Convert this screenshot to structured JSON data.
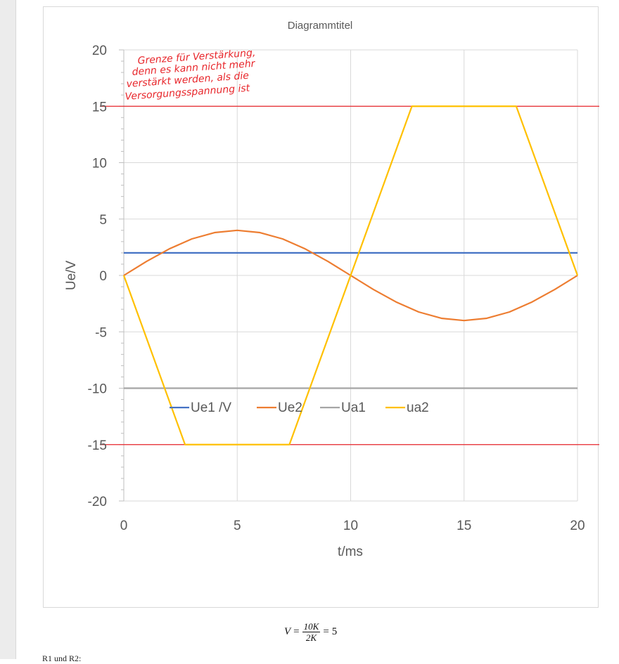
{
  "chart_data": {
    "type": "line",
    "title": "Diagrammtitel",
    "xlabel": "t/ms",
    "ylabel": "Ue/V",
    "xlim": [
      0,
      20
    ],
    "ylim": [
      -20,
      20
    ],
    "x_ticks": [
      0,
      5,
      10,
      15,
      20
    ],
    "y_ticks": [
      20,
      15,
      10,
      5,
      0,
      -5,
      -10,
      -15,
      -20
    ],
    "grid": true,
    "legend_position": "bottom-left-inside",
    "series": [
      {
        "name": "Ue1 /V",
        "color": "#4472C4",
        "points": [
          [
            0,
            2
          ],
          [
            20,
            2
          ]
        ]
      },
      {
        "name": "Ue2",
        "color": "#ED7D31",
        "points": [
          [
            0,
            0
          ],
          [
            1,
            1.24
          ],
          [
            2,
            2.35
          ],
          [
            3,
            3.24
          ],
          [
            4,
            3.8
          ],
          [
            5,
            4
          ],
          [
            6,
            3.8
          ],
          [
            7,
            3.24
          ],
          [
            8,
            2.35
          ],
          [
            9,
            1.24
          ],
          [
            10,
            0
          ],
          [
            11,
            -1.24
          ],
          [
            12,
            -2.35
          ],
          [
            13,
            -3.24
          ],
          [
            14,
            -3.8
          ],
          [
            15,
            -4
          ],
          [
            16,
            -3.8
          ],
          [
            17,
            -3.24
          ],
          [
            18,
            -2.35
          ],
          [
            19,
            -1.24
          ],
          [
            20,
            0
          ]
        ]
      },
      {
        "name": "Ua1",
        "color": "#A5A5A5",
        "points": [
          [
            0,
            -10
          ],
          [
            20,
            -10
          ]
        ]
      },
      {
        "name": "ua2",
        "color": "#FFC000",
        "points": [
          [
            0,
            0
          ],
          [
            2.7,
            -15
          ],
          [
            7.3,
            -15
          ],
          [
            10,
            0
          ],
          [
            12.7,
            15
          ],
          [
            17.3,
            15
          ],
          [
            20,
            0
          ]
        ]
      }
    ],
    "limit_lines": [
      {
        "y": 15,
        "color": "#E8262B"
      },
      {
        "y": -15,
        "color": "#E8262B"
      }
    ],
    "annotation": {
      "lines": [
        "Grenze für Verstärkung,",
        "denn es kann nicht mehr",
        "verstärkt werden, als die",
        "Versorgungsspannung ist"
      ],
      "color": "#E8262B"
    }
  },
  "formula": {
    "lhs": "V",
    "eq1": "=",
    "numerator": "10K",
    "denominator": "2K",
    "eq2": "=",
    "result": "5"
  },
  "footer_note": "R1 und R2:"
}
